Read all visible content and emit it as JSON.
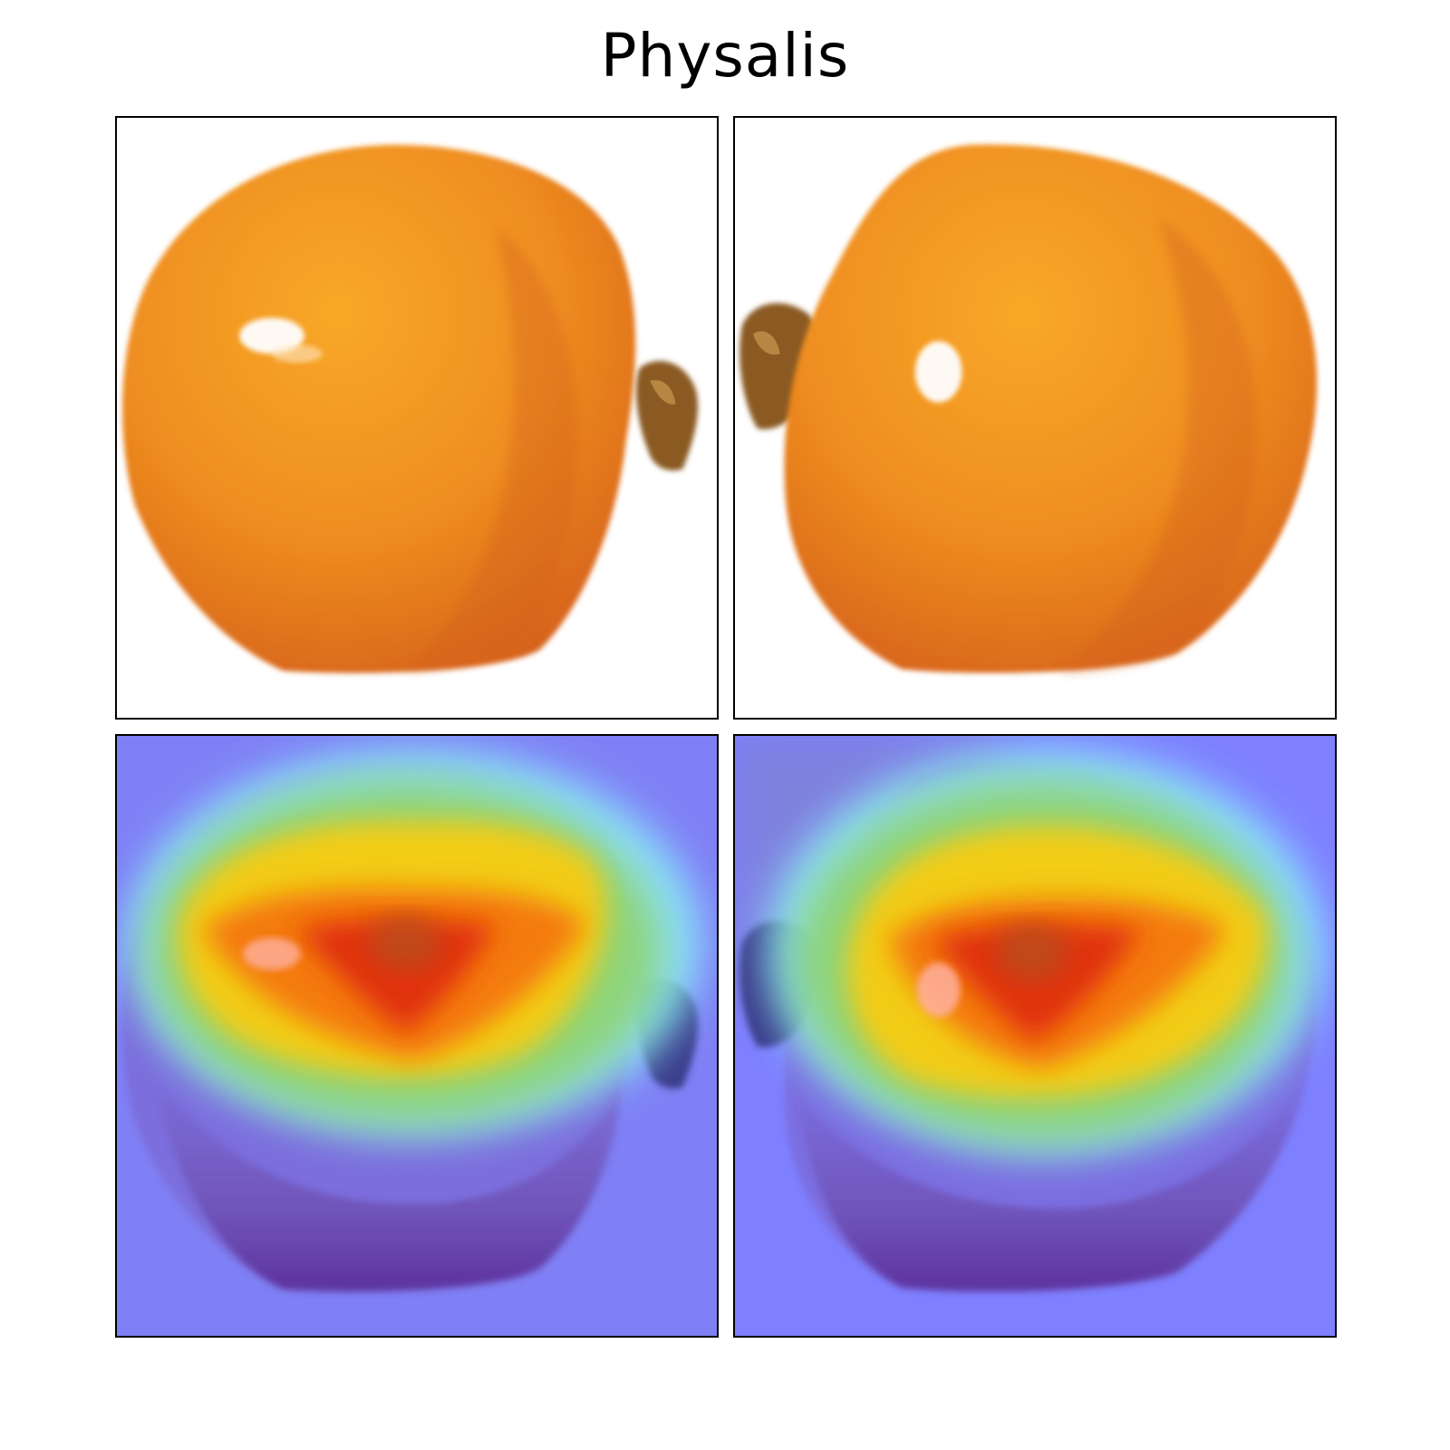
{
  "figure": {
    "title": "Physalis"
  },
  "panels": [
    {
      "id": "original-left",
      "row": "top",
      "view": "stem-right",
      "kind": "photo"
    },
    {
      "id": "original-right",
      "row": "top",
      "view": "stem-left",
      "kind": "photo"
    },
    {
      "id": "heatmap-left",
      "row": "bottom",
      "view": "stem-right",
      "kind": "saliency-overlay"
    },
    {
      "id": "heatmap-right",
      "row": "bottom",
      "view": "stem-left",
      "kind": "saliency-overlay"
    }
  ],
  "colors": {
    "fruit_light": "#f6a024",
    "fruit_mid": "#ec8a1e",
    "fruit_dark": "#d8641c",
    "stem": "#8a5a22",
    "heat_low": "#7a7cff",
    "heat_cyan": "#86f0ff",
    "heat_green": "#8fd26b",
    "heat_yellow": "#f2cc16",
    "heat_orange": "#f47a10",
    "heat_red": "#e0300c",
    "panel_border": "#000000"
  }
}
